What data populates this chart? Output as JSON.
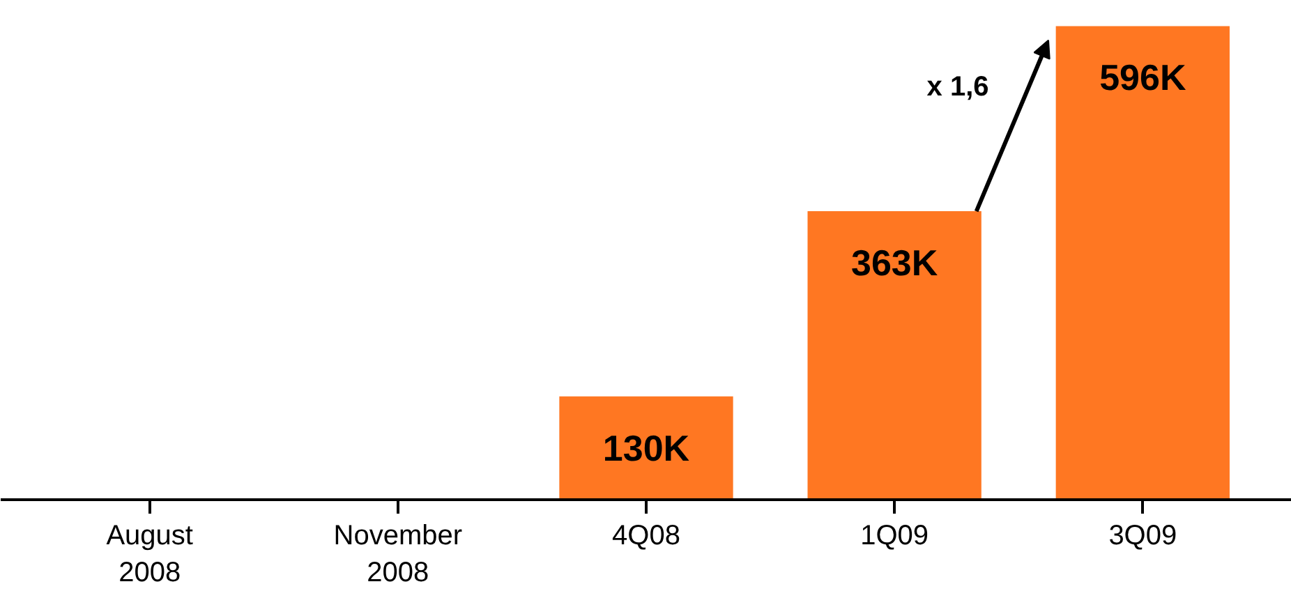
{
  "chart_data": {
    "type": "bar",
    "categories": [
      "August 2008",
      "November 2008",
      "4Q08",
      "1Q09",
      "3Q09"
    ],
    "values": [
      null,
      null,
      130,
      363,
      596
    ],
    "value_labels": [
      null,
      null,
      "130K",
      "363K",
      "596K"
    ],
    "color": "#ff7722",
    "annotations": [
      "x 1,6"
    ],
    "grid": false
  }
}
